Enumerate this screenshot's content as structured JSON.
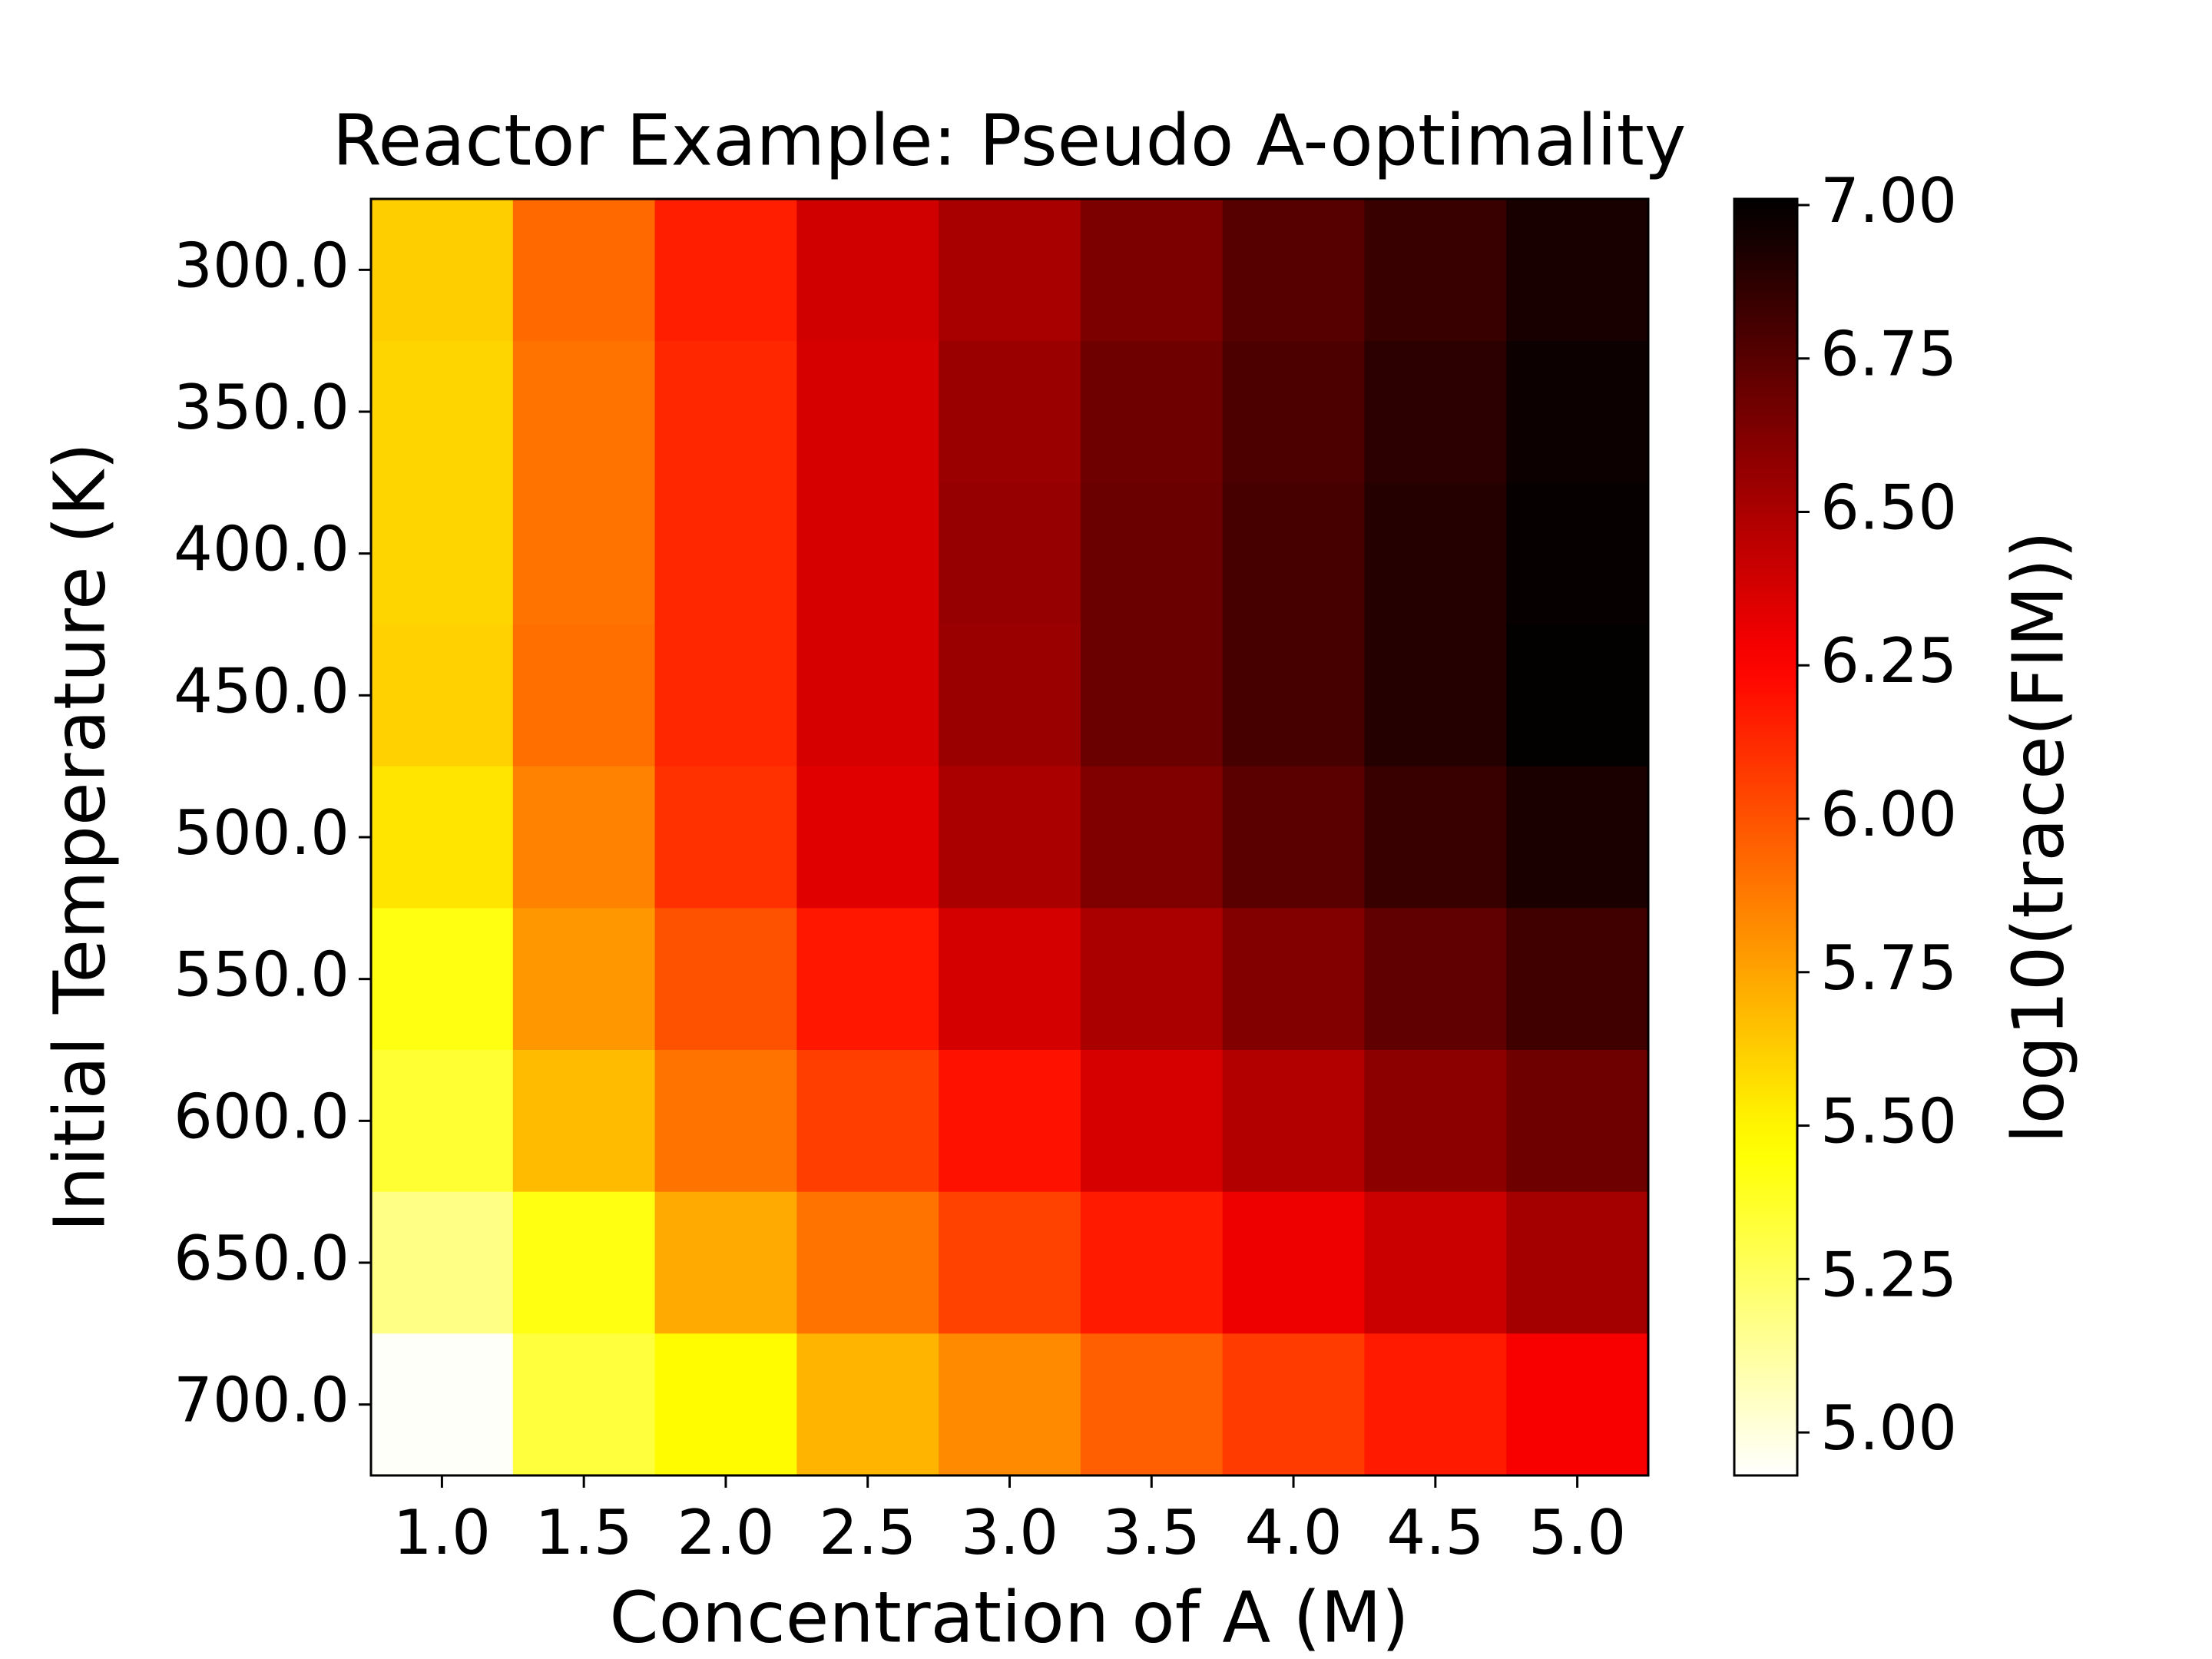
{
  "chart_data": {
    "type": "heatmap",
    "title": "Reactor Example: Pseudo A-optimality",
    "x_label": "Concentration of A (M)",
    "y_label": "Initial Temperature (K)",
    "colorbar_label": "log10(trace(FIM))",
    "colormap": "hot_r",
    "categories": [
      "1.0",
      "1.5",
      "2.0",
      "2.5",
      "3.0",
      "3.5",
      "4.0",
      "4.5",
      "5.0"
    ],
    "y_categories": [
      "300.0",
      "350.0",
      "400.0",
      "450.0",
      "500.0",
      "550.0",
      "600.0",
      "650.0",
      "700.0"
    ],
    "values": [
      [
        5.62,
        5.93,
        6.16,
        6.39,
        6.51,
        6.64,
        6.75,
        6.84,
        6.94
      ],
      [
        5.6,
        5.9,
        6.13,
        6.37,
        6.55,
        6.68,
        6.78,
        6.88,
        6.97
      ],
      [
        5.6,
        5.9,
        6.13,
        6.37,
        6.56,
        6.69,
        6.8,
        6.9,
        6.99
      ],
      [
        5.61,
        5.91,
        6.13,
        6.37,
        6.55,
        6.69,
        6.8,
        6.9,
        7.0
      ],
      [
        5.55,
        5.85,
        6.1,
        6.34,
        6.5,
        6.63,
        6.74,
        6.84,
        6.93
      ],
      [
        5.42,
        5.79,
        6.0,
        6.18,
        6.38,
        6.5,
        6.62,
        6.72,
        6.82
      ],
      [
        5.35,
        5.68,
        5.9,
        6.06,
        6.2,
        6.37,
        6.48,
        6.59,
        6.68
      ],
      [
        5.18,
        5.42,
        5.73,
        5.9,
        6.05,
        6.17,
        6.3,
        6.41,
        6.52
      ],
      [
        4.94,
        5.33,
        5.48,
        5.7,
        5.83,
        5.96,
        6.07,
        6.17,
        6.27
      ]
    ],
    "clim": [
      4.93,
      7.01
    ],
    "cticks": [
      {
        "value": 5,
        "label": "5.00"
      },
      {
        "value": 5.25,
        "label": "5.25"
      },
      {
        "value": 5.5,
        "label": "5.50"
      },
      {
        "value": 5.75,
        "label": "5.75"
      },
      {
        "value": 6,
        "label": "6.00"
      },
      {
        "value": 6.25,
        "label": "6.25"
      },
      {
        "value": 6.5,
        "label": "6.50"
      },
      {
        "value": 6.75,
        "label": "6.75"
      },
      {
        "value": 7,
        "label": "7.00"
      }
    ]
  }
}
